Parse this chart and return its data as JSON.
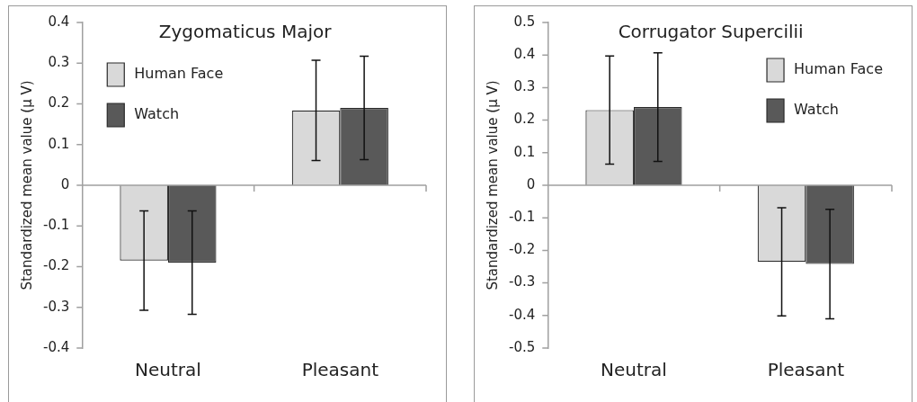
{
  "chart_data": [
    {
      "type": "bar",
      "title": "Zygomaticus Major",
      "ylabel": "Standardized mean value (μ V)",
      "categories": [
        "Neutral",
        "Pleasant"
      ],
      "series": [
        {
          "name": "Human Face",
          "color": "#d9d9d9",
          "values": [
            -0.185,
            0.184
          ],
          "errors": [
            0.122,
            0.123
          ]
        },
        {
          "name": "Watch",
          "color": "#595959",
          "values": [
            -0.19,
            0.19
          ],
          "errors": [
            0.127,
            0.127
          ]
        }
      ],
      "ylim": [
        -0.4,
        0.4
      ],
      "yticks": [
        {
          "value": -0.4,
          "label": "-0.4"
        },
        {
          "value": -0.3,
          "label": "-0.3"
        },
        {
          "value": -0.2,
          "label": "-0.2"
        },
        {
          "value": -0.1,
          "label": "-0.1"
        },
        0,
        {
          "value": 0.1,
          "label": "0.1"
        },
        {
          "value": 0.2,
          "label": "0.2"
        },
        {
          "value": 0.3,
          "label": "0.3"
        },
        {
          "value": 0.4,
          "label": "0.4"
        }
      ],
      "legend": "top left"
    },
    {
      "type": "bar",
      "title": "Corrugator Supercilii",
      "ylabel": "Standardized mean value (μ V)",
      "categories": [
        "Neutral",
        "Pleasant"
      ],
      "series": [
        {
          "name": "Human Face",
          "color": "#d9d9d9",
          "values": [
            0.231,
            -0.235
          ],
          "errors": [
            0.166,
            0.166
          ]
        },
        {
          "name": "Watch",
          "color": "#595959",
          "values": [
            0.24,
            -0.242
          ],
          "errors": [
            0.167,
            0.168
          ]
        }
      ],
      "ylim": [
        -0.5,
        0.5
      ],
      "yticks": [
        {
          "value": -0.5,
          "label": "-0.5"
        },
        {
          "value": -0.4,
          "label": "-0.4"
        },
        {
          "value": -0.3,
          "label": "-0.3"
        },
        {
          "value": -0.2,
          "label": "-0.2"
        },
        {
          "value": -0.1,
          "label": "-0.1"
        },
        0,
        {
          "value": 0.1,
          "label": "0.1"
        },
        {
          "value": 0.2,
          "label": "0.2"
        },
        {
          "value": 0.3,
          "label": "0.3"
        },
        {
          "value": 0.4,
          "label": "0.4"
        },
        {
          "value": 0.5,
          "label": "0.5"
        }
      ],
      "legend": "top right"
    }
  ]
}
